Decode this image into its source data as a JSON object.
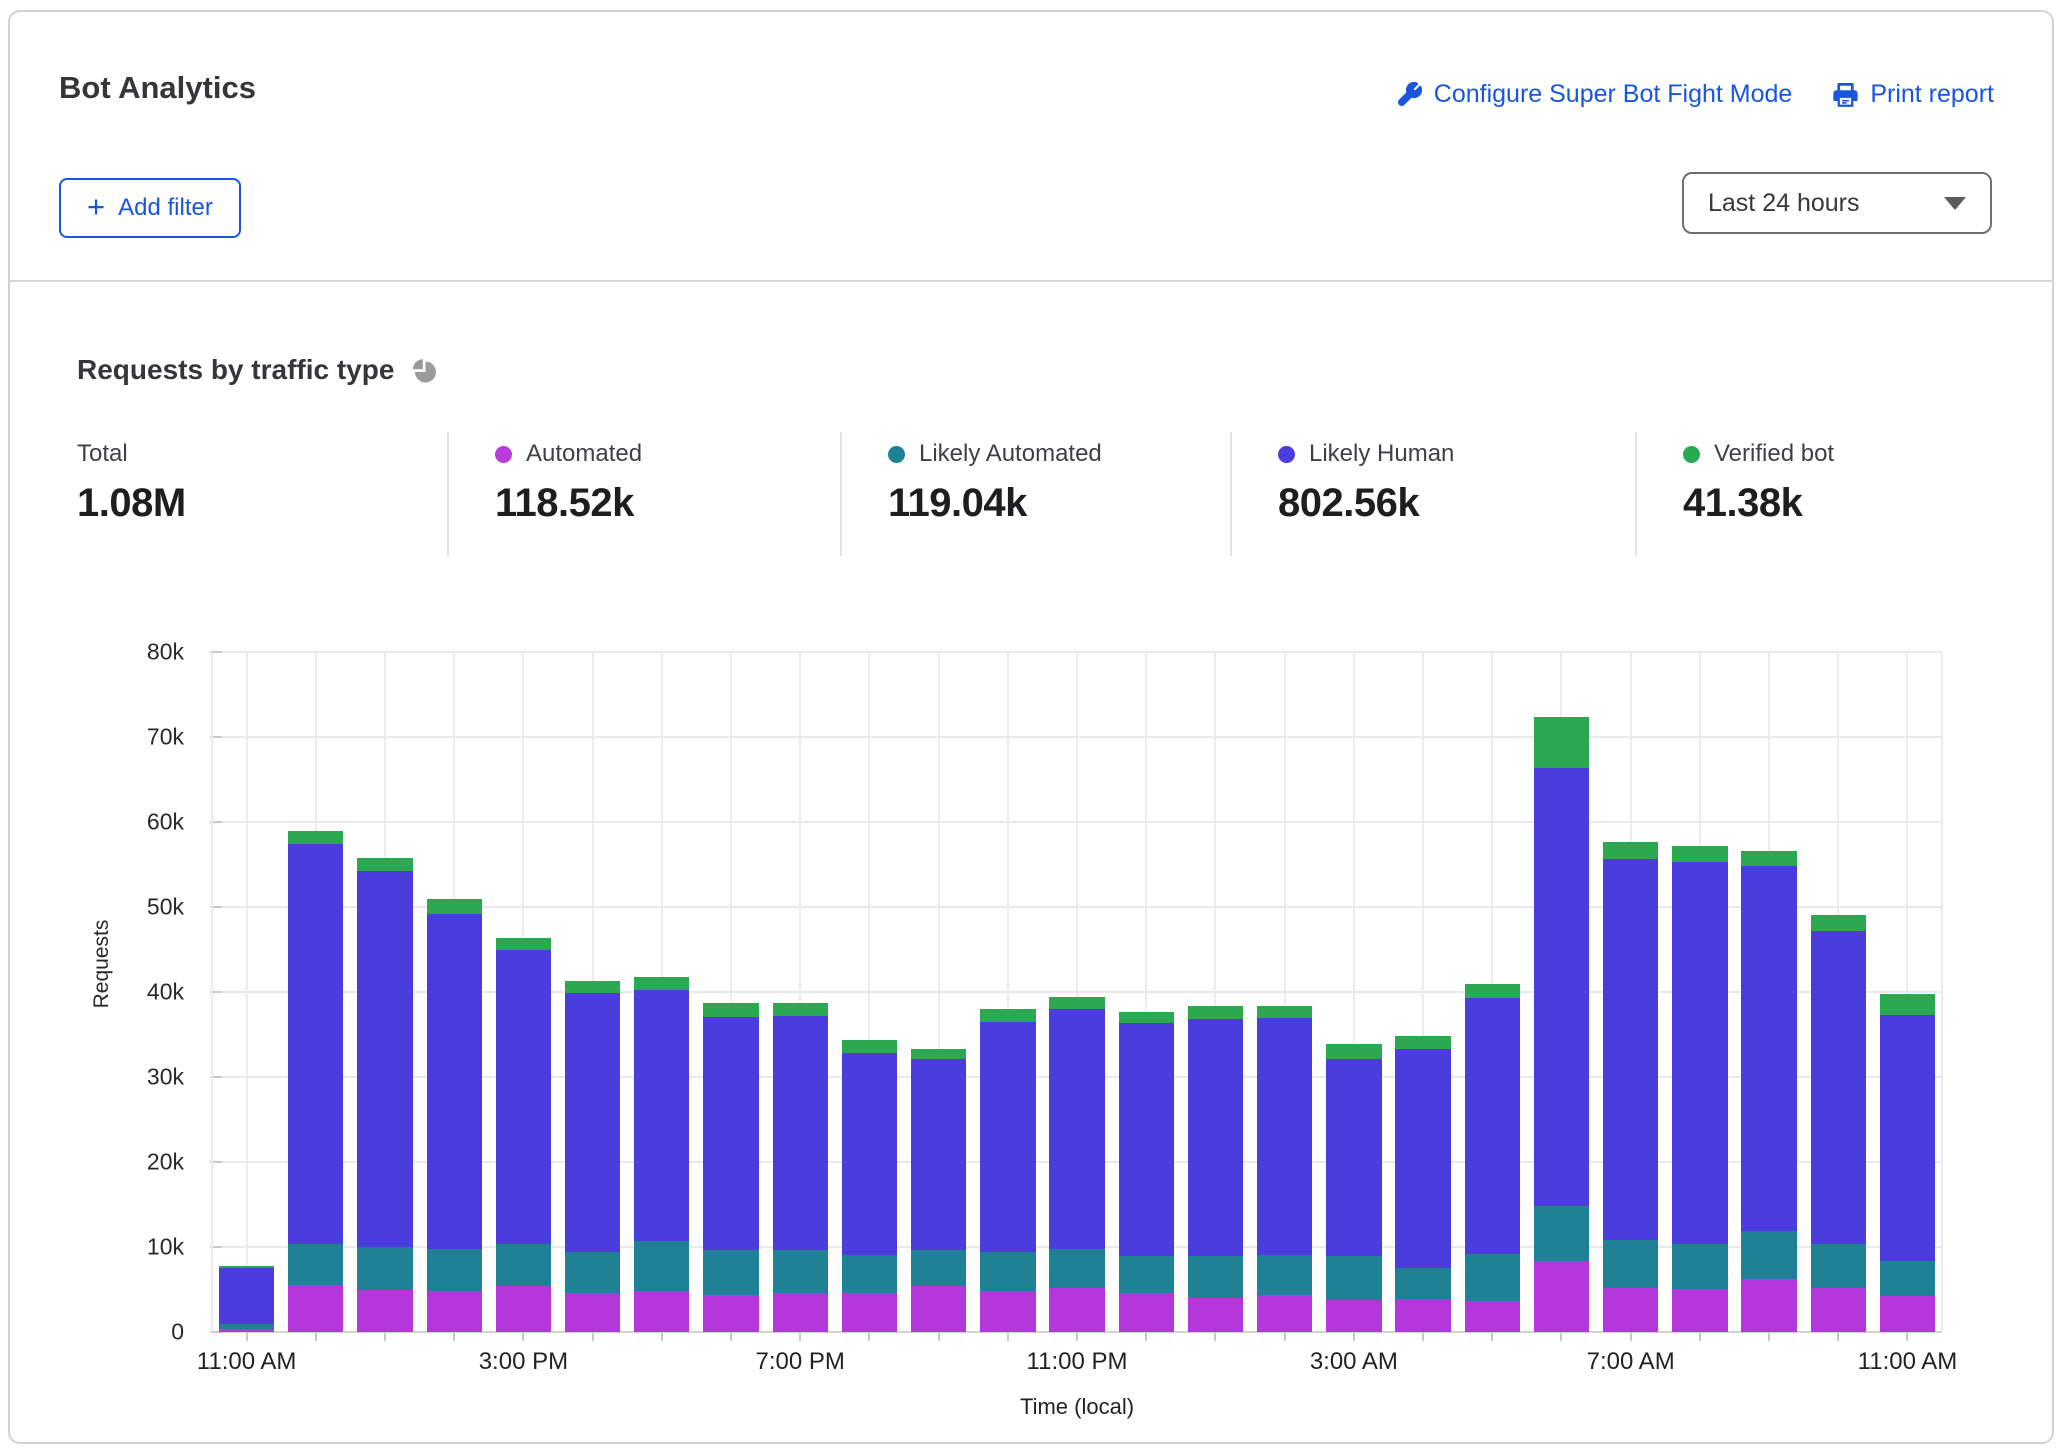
{
  "header": {
    "title": "Bot Analytics",
    "configure_link": "Configure Super Bot Fight Mode",
    "print_link": "Print report",
    "add_filter_label": "Add filter",
    "time_range_value": "Last 24 hours"
  },
  "section": {
    "title": "Requests by traffic type"
  },
  "stats": [
    {
      "label": "Total",
      "value": "1.08M",
      "color": null
    },
    {
      "label": "Automated",
      "value": "118.52k",
      "color": "#B93CDB"
    },
    {
      "label": "Likely Automated",
      "value": "119.04k",
      "color": "#1E8296"
    },
    {
      "label": "Likely Human",
      "value": "802.56k",
      "color": "#4A3CDD"
    },
    {
      "label": "Verified bot",
      "value": "41.38k",
      "color": "#2BA951"
    }
  ],
  "chart_data": {
    "type": "bar",
    "stacked": true,
    "title": "Requests by traffic type",
    "xlabel": "Time (local)",
    "ylabel": "Requests",
    "ylim": [
      0,
      80000
    ],
    "ytick_step": 10000,
    "y_tick_labels": [
      "0",
      "10k",
      "20k",
      "30k",
      "40k",
      "50k",
      "60k",
      "70k",
      "80k"
    ],
    "grid": true,
    "x_label_every": 4,
    "x": [
      "11:00 AM",
      "12:00 PM",
      "1:00 PM",
      "2:00 PM",
      "3:00 PM",
      "4:00 PM",
      "5:00 PM",
      "6:00 PM",
      "7:00 PM",
      "8:00 PM",
      "9:00 PM",
      "10:00 PM",
      "11:00 PM",
      "12:00 AM",
      "1:00 AM",
      "2:00 AM",
      "3:00 AM",
      "4:00 AM",
      "5:00 AM",
      "6:00 AM",
      "7:00 AM",
      "8:00 AM",
      "9:00 AM",
      "10:00 AM",
      "11:00 AM"
    ],
    "series": [
      {
        "key": "automated",
        "name": "Automated",
        "color": "#B437DB",
        "total": "118.52k",
        "values": [
          400,
          5500,
          5000,
          4800,
          5400,
          4600,
          4800,
          4400,
          4600,
          4600,
          5400,
          4800,
          5200,
          4600,
          4000,
          4400,
          3800,
          3900,
          3700,
          8300,
          5200,
          5100,
          6200,
          5200,
          4200
        ]
      },
      {
        "key": "likely-automated",
        "name": "Likely Automated",
        "color": "#1F8195",
        "total": "119.04k",
        "values": [
          600,
          4900,
          5000,
          5000,
          5000,
          4800,
          5900,
          5300,
          5100,
          4500,
          4200,
          4600,
          4600,
          4300,
          4900,
          4700,
          5200,
          3600,
          5500,
          6500,
          5600,
          5300,
          5700,
          5200,
          4100
        ]
      },
      {
        "key": "likely-human",
        "name": "Likely Human",
        "color": "#4A3CDD",
        "total": "802.56k",
        "values": [
          6500,
          47000,
          44200,
          39400,
          34500,
          30500,
          29500,
          27400,
          27500,
          23700,
          22500,
          27100,
          28200,
          27400,
          27900,
          27800,
          23100,
          25800,
          30100,
          51600,
          44800,
          44900,
          42900,
          36800,
          29000
        ]
      },
      {
        "key": "verified-bot",
        "name": "Verified bot",
        "color": "#2BA951",
        "total": "41.38k",
        "values": [
          300,
          1600,
          1600,
          1700,
          1500,
          1400,
          1600,
          1600,
          1500,
          1500,
          1200,
          1500,
          1400,
          1400,
          1500,
          1500,
          1800,
          1500,
          1600,
          5900,
          2000,
          1900,
          1800,
          1900,
          2500
        ]
      }
    ],
    "total_label": "Total",
    "total_value": "1.08M"
  }
}
